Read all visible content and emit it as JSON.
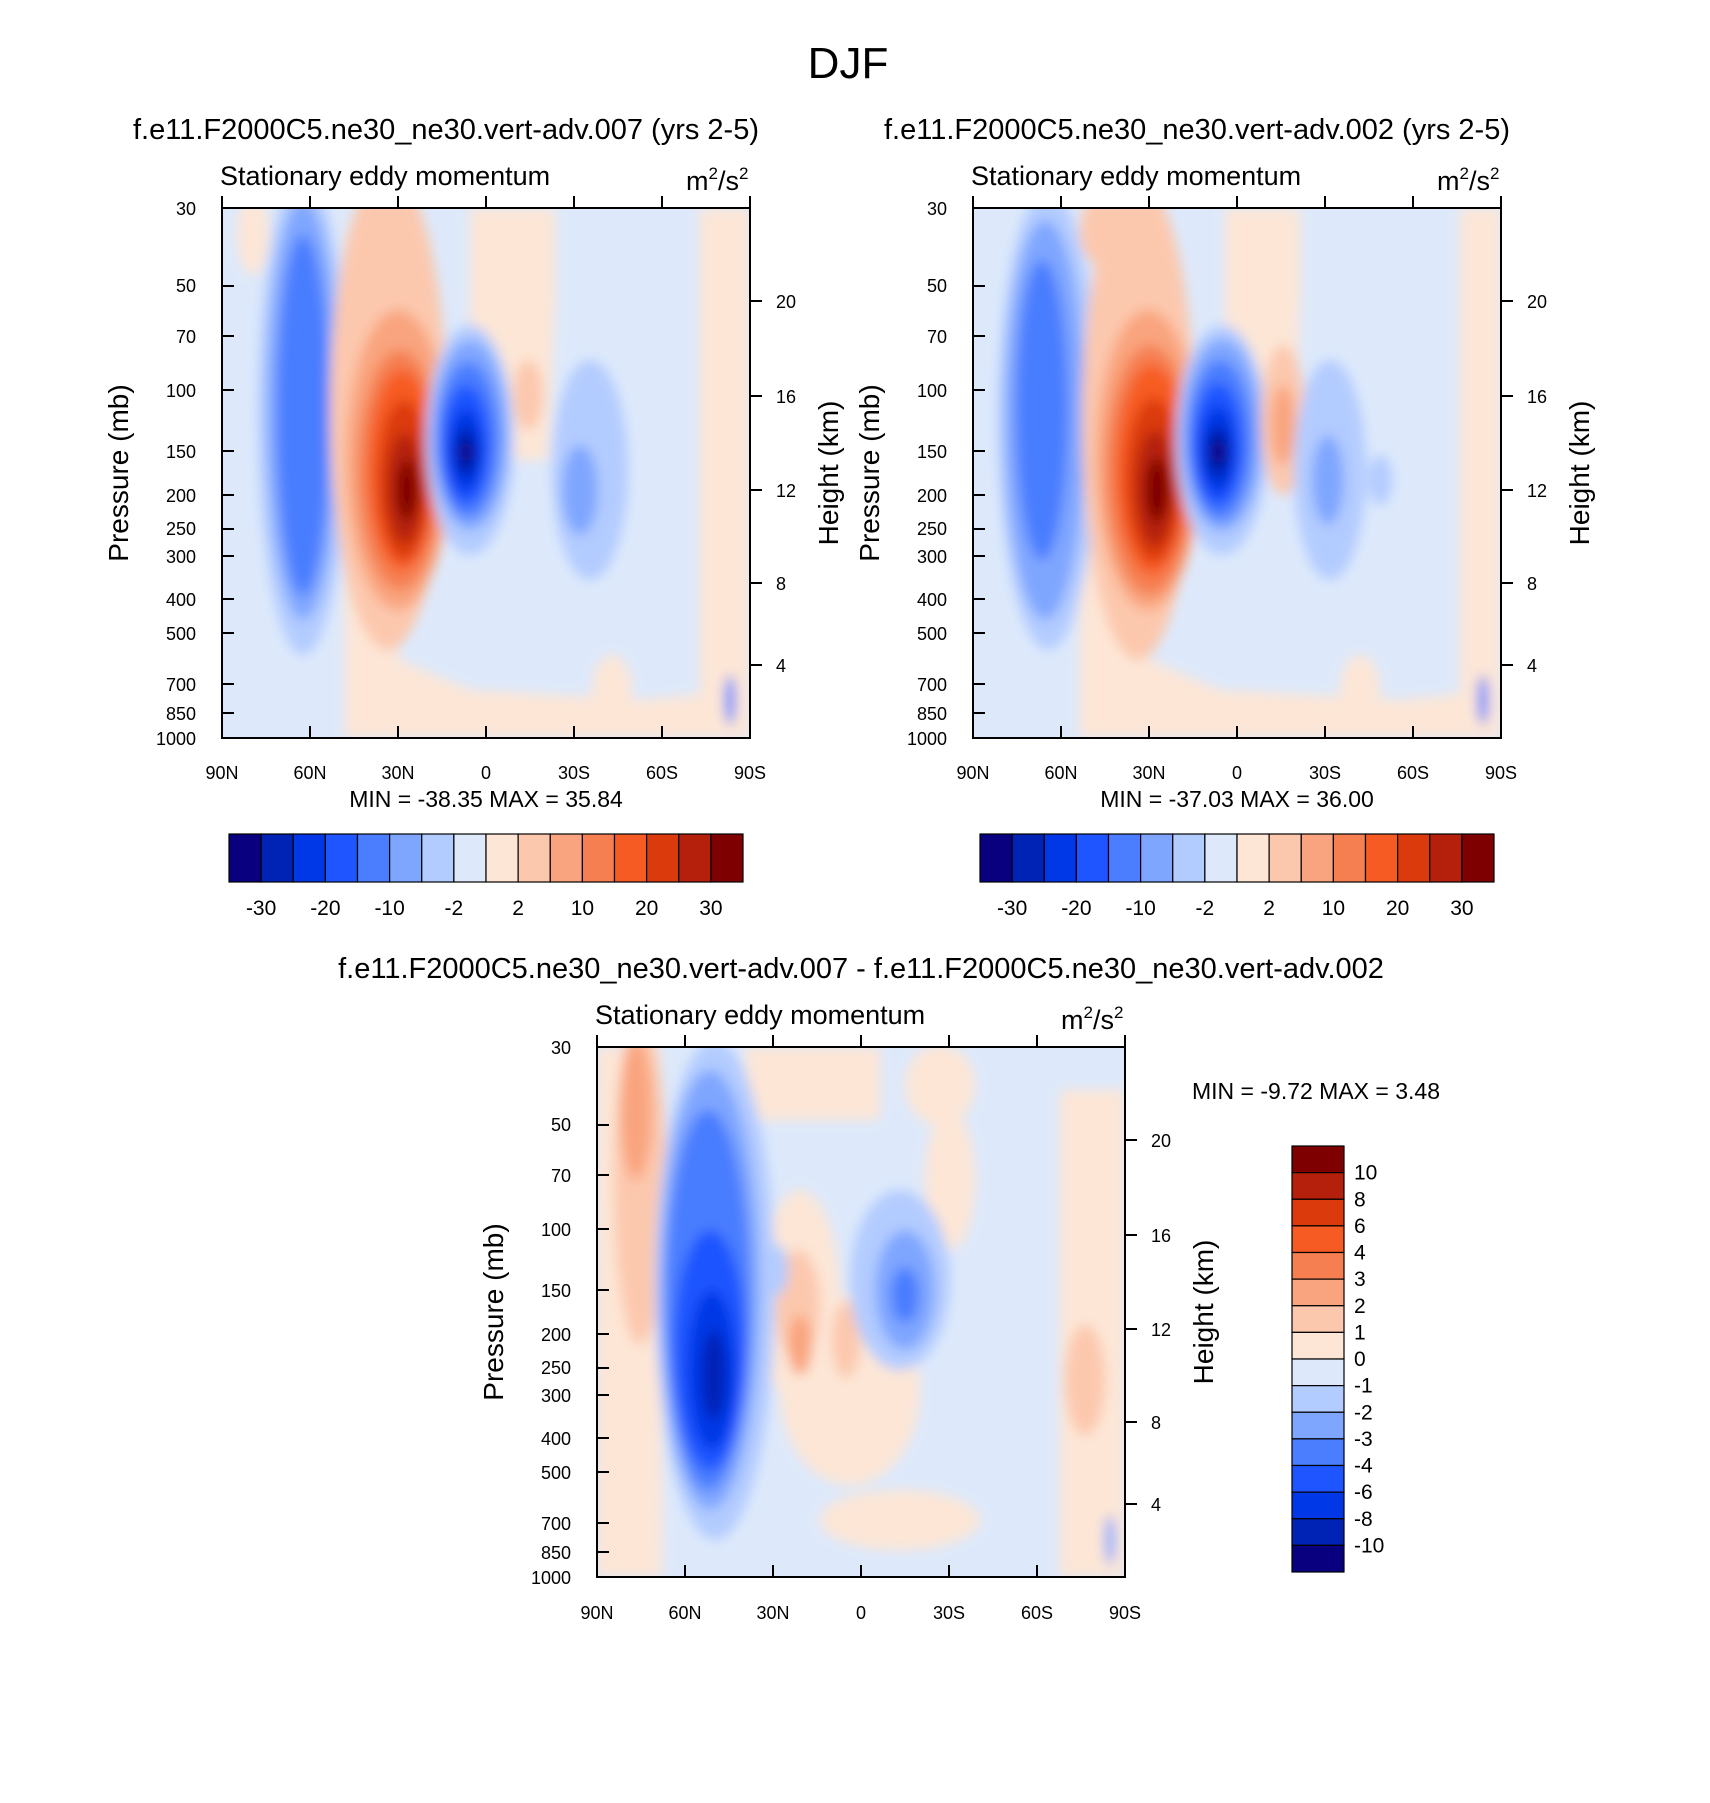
{
  "figure_title": "DJF",
  "colors": {
    "palette16": [
      "#08007f",
      "#0022b5",
      "#0037e6",
      "#1e55ff",
      "#4a7dff",
      "#7fa6ff",
      "#b3ccff",
      "#dde9fb",
      "#fde6d6",
      "#fcc8ad",
      "#f9a47e",
      "#f57f51",
      "#f75b24",
      "#db3a0d",
      "#b4200b",
      "#7f0000"
    ],
    "diff_palette": [
      "#08007f",
      "#0022b5",
      "#0037e6",
      "#1e55ff",
      "#4a7dff",
      "#7fa6ff",
      "#b3ccff",
      "#dde9fb",
      "#fde6d6",
      "#fcc8ad",
      "#f9a47e",
      "#f57f51",
      "#f75b24",
      "#db3a0d",
      "#b4200b",
      "#7f0000"
    ]
  },
  "panels": [
    {
      "id": "case",
      "title": "f.e11.F2000C5.ne30_ne30.vert-adv.007 (yrs 2-5)",
      "left_label": "Stationary eddy momentum",
      "units_base": "m",
      "units_exp1": "2",
      "units_mid": "/s",
      "units_exp2": "2",
      "stats": "MIN = -38.35  MAX =  35.84",
      "y_title": "Pressure (mb)",
      "y2_title": "Height (km)"
    },
    {
      "id": "control",
      "title": "f.e11.F2000C5.ne30_ne30.vert-adv.002 (yrs 2-5)",
      "left_label": "Stationary eddy momentum",
      "units_base": "m",
      "units_exp1": "2",
      "units_mid": "/s",
      "units_exp2": "2",
      "stats": "MIN = -37.03  MAX =  36.00",
      "y_title": "Pressure (mb)",
      "y2_title": "Height (km)"
    },
    {
      "id": "diff",
      "title": "f.e11.F2000C5.ne30_ne30.vert-adv.007 - f.e11.F2000C5.ne30_ne30.vert-adv.002",
      "left_label": "Stationary eddy momentum",
      "units_base": "m",
      "units_exp1": "2",
      "units_mid": "/s",
      "units_exp2": "2",
      "stats": "MIN =  -9.72  MAX =   3.48",
      "y_title": "Pressure (mb)",
      "y2_title": "Height (km)"
    }
  ],
  "chart_data": [
    {
      "type": "heatmap",
      "title": "f.e11.F2000C5.ne30_ne30.vert-adv.007 (yrs 2-5)",
      "variable": "Stationary eddy momentum",
      "units": "m2/s2",
      "x_tick_labels": [
        "90N",
        "60N",
        "30N",
        "0",
        "30S",
        "60S",
        "90S"
      ],
      "x_ticks": [
        90,
        60,
        30,
        0,
        -30,
        -60,
        -90
      ],
      "y_tick_labels": [
        "30",
        "50",
        "70",
        "100",
        "150",
        "200",
        "250",
        "300",
        "400",
        "500",
        "700",
        "850",
        "1000"
      ],
      "y_ticks": [
        30,
        50,
        70,
        100,
        150,
        200,
        250,
        300,
        400,
        500,
        700,
        850,
        1000
      ],
      "y2_tick_labels": [
        "20",
        "16",
        "12",
        "8",
        "4"
      ],
      "y2_ticks": [
        20,
        16,
        12,
        8,
        4
      ],
      "ylim": [
        1000,
        30
      ],
      "colorbar_levels": [
        -35,
        -30,
        -25,
        -20,
        -15,
        -10,
        -5,
        -2,
        0,
        2,
        5,
        10,
        15,
        20,
        25,
        30,
        35
      ],
      "colorbar_labels": [
        "-30",
        "-20",
        "-10",
        "-2",
        "2",
        "10",
        "20",
        "30"
      ],
      "min": -38.35,
      "max": 35.84,
      "features": [
        {
          "lat": 60,
          "p": 200,
          "value": -20,
          "sign": "negative"
        },
        {
          "lat": 28,
          "p": 200,
          "value": 35.84,
          "sign": "positive"
        },
        {
          "lat": 5,
          "p": 150,
          "value": -38.35,
          "sign": "negative"
        },
        {
          "lat": -30,
          "p": 200,
          "value": -12,
          "sign": "negative"
        },
        {
          "lat": -12,
          "p": 120,
          "value": 5,
          "sign": "positive"
        }
      ]
    },
    {
      "type": "heatmap",
      "title": "f.e11.F2000C5.ne30_ne30.vert-adv.002 (yrs 2-5)",
      "variable": "Stationary eddy momentum",
      "units": "m2/s2",
      "x_tick_labels": [
        "90N",
        "60N",
        "30N",
        "0",
        "30S",
        "60S",
        "90S"
      ],
      "x_ticks": [
        90,
        60,
        30,
        0,
        -30,
        -60,
        -90
      ],
      "y_tick_labels": [
        "30",
        "50",
        "70",
        "100",
        "150",
        "200",
        "250",
        "300",
        "400",
        "500",
        "700",
        "850",
        "1000"
      ],
      "y_ticks": [
        30,
        50,
        70,
        100,
        150,
        200,
        250,
        300,
        400,
        500,
        700,
        850,
        1000
      ],
      "y2_tick_labels": [
        "20",
        "16",
        "12",
        "8",
        "4"
      ],
      "y2_ticks": [
        20,
        16,
        12,
        8,
        4
      ],
      "ylim": [
        1000,
        30
      ],
      "colorbar_levels": [
        -35,
        -30,
        -25,
        -20,
        -15,
        -10,
        -5,
        -2,
        0,
        2,
        5,
        10,
        15,
        20,
        25,
        30,
        35
      ],
      "colorbar_labels": [
        "-30",
        "-20",
        "-10",
        "-2",
        "2",
        "10",
        "20",
        "30"
      ],
      "min": -37.03,
      "max": 36.0,
      "features": [
        {
          "lat": 63,
          "p": 200,
          "value": -20,
          "sign": "negative"
        },
        {
          "lat": 28,
          "p": 200,
          "value": 36.0,
          "sign": "positive"
        },
        {
          "lat": 5,
          "p": 150,
          "value": -37.03,
          "sign": "negative"
        },
        {
          "lat": -30,
          "p": 200,
          "value": -10,
          "sign": "negative"
        },
        {
          "lat": -15,
          "p": 150,
          "value": 10,
          "sign": "positive"
        }
      ]
    },
    {
      "type": "heatmap",
      "title": "f.e11.F2000C5.ne30_ne30.vert-adv.007 - f.e11.F2000C5.ne30_ne30.vert-adv.002",
      "variable": "Stationary eddy momentum",
      "units": "m2/s2",
      "x_tick_labels": [
        "90N",
        "60N",
        "30N",
        "0",
        "30S",
        "60S",
        "90S"
      ],
      "x_ticks": [
        90,
        60,
        30,
        0,
        -30,
        -60,
        -90
      ],
      "y_tick_labels": [
        "30",
        "50",
        "70",
        "100",
        "150",
        "200",
        "250",
        "300",
        "400",
        "500",
        "700",
        "850",
        "1000"
      ],
      "y_ticks": [
        30,
        50,
        70,
        100,
        150,
        200,
        250,
        300,
        400,
        500,
        700,
        850,
        1000
      ],
      "y2_tick_labels": [
        "20",
        "16",
        "12",
        "8",
        "4"
      ],
      "y2_ticks": [
        20,
        16,
        12,
        8,
        4
      ],
      "ylim": [
        1000,
        30
      ],
      "colorbar_levels": [
        -12,
        -10,
        -8,
        -6,
        -4,
        -3,
        -2,
        -1,
        0,
        1,
        2,
        3,
        4,
        6,
        8,
        10,
        12
      ],
      "colorbar_labels": [
        "10",
        "8",
        "6",
        "4",
        "3",
        "2",
        "1",
        "0",
        "-1",
        "-2",
        "-3",
        "-4",
        "-6",
        "-8",
        "-10"
      ],
      "min": -9.72,
      "max": 3.48,
      "features": [
        {
          "lat": 50,
          "p": 250,
          "value": -9.72,
          "sign": "negative"
        },
        {
          "lat": 80,
          "p": 50,
          "value": 3.48,
          "sign": "positive"
        },
        {
          "lat": -15,
          "p": 170,
          "value": -6,
          "sign": "negative"
        },
        {
          "lat": 20,
          "p": 250,
          "value": 2,
          "sign": "positive"
        }
      ]
    }
  ]
}
